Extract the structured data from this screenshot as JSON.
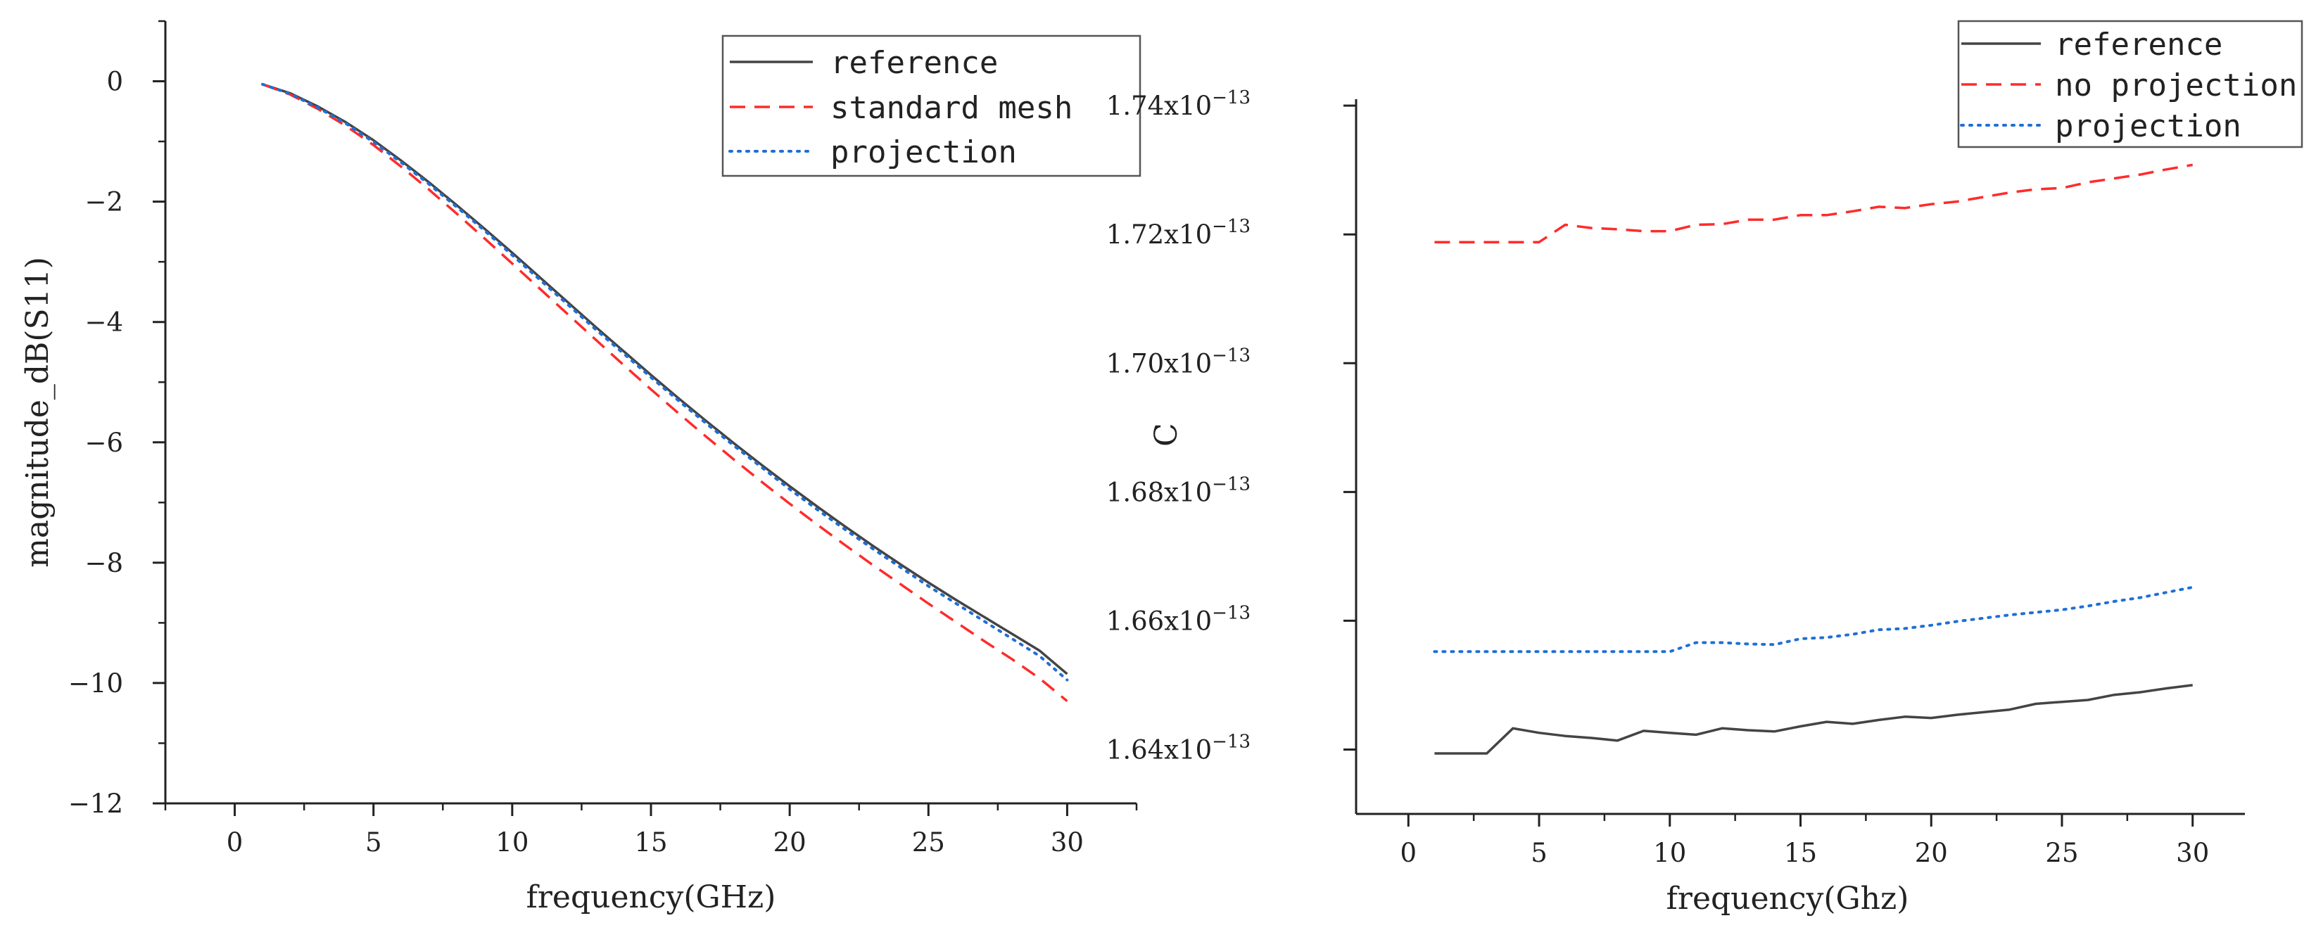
{
  "chart_data": [
    {
      "type": "line",
      "xlabel": "frequency(GHz)",
      "ylabel": "magnitude_dB(S11)",
      "xlim": [
        -2.5,
        32.5
      ],
      "ylim": [
        -12,
        1
      ],
      "xticks": [
        0,
        5,
        10,
        15,
        20,
        25,
        30
      ],
      "xtick_labels": [
        "0",
        "5",
        "10",
        "15",
        "20",
        "25",
        "30"
      ],
      "yticks": [
        0,
        -2,
        -4,
        -6,
        -8,
        -10,
        -12
      ],
      "ytick_labels": [
        "0",
        "−2",
        "−4",
        "−6",
        "−8",
        "−10",
        "−12"
      ],
      "legend_position": "top-right",
      "x": [
        1,
        2,
        3,
        4,
        5,
        6,
        7,
        8,
        9,
        10,
        11,
        12,
        13,
        14,
        15,
        16,
        17,
        18,
        19,
        20,
        21,
        22,
        23,
        24,
        25,
        26,
        27,
        28,
        29,
        30
      ],
      "series": [
        {
          "name": "reference",
          "color": "#444444",
          "dash": "solid",
          "values": [
            -0.05,
            -0.2,
            -0.42,
            -0.68,
            -0.98,
            -1.32,
            -1.68,
            -2.06,
            -2.45,
            -2.85,
            -3.26,
            -3.67,
            -4.08,
            -4.48,
            -4.88,
            -5.27,
            -5.65,
            -6.02,
            -6.38,
            -6.73,
            -7.07,
            -7.4,
            -7.72,
            -8.03,
            -8.33,
            -8.62,
            -8.9,
            -9.18,
            -9.46,
            -9.85
          ]
        },
        {
          "name": "standard mesh",
          "color": "#ff2b2b",
          "dash": "dashed",
          "values": [
            -0.05,
            -0.22,
            -0.46,
            -0.74,
            -1.06,
            -1.42,
            -1.8,
            -2.2,
            -2.61,
            -3.03,
            -3.45,
            -3.87,
            -4.29,
            -4.71,
            -5.12,
            -5.52,
            -5.91,
            -6.29,
            -6.66,
            -7.02,
            -7.37,
            -7.71,
            -8.04,
            -8.36,
            -8.68,
            -8.99,
            -9.3,
            -9.6,
            -9.92,
            -10.3
          ]
        },
        {
          "name": "projection",
          "color": "#1f6fd6",
          "dash": "dotted",
          "values": [
            -0.05,
            -0.21,
            -0.44,
            -0.7,
            -1.01,
            -1.35,
            -1.71,
            -2.09,
            -2.48,
            -2.89,
            -3.3,
            -3.71,
            -4.12,
            -4.52,
            -4.92,
            -5.31,
            -5.69,
            -6.06,
            -6.42,
            -6.78,
            -7.12,
            -7.45,
            -7.77,
            -8.08,
            -8.39,
            -8.68,
            -8.97,
            -9.26,
            -9.55,
            -9.95
          ]
        }
      ]
    },
    {
      "type": "line",
      "xlabel": "frequency(Ghz)",
      "ylabel": "C",
      "xlim": [
        -2,
        32
      ],
      "ylim": [
        1.63e-13,
        1.741e-13
      ],
      "xticks": [
        0,
        5,
        10,
        15,
        20,
        25,
        30
      ],
      "xtick_labels": [
        "0",
        "5",
        "10",
        "15",
        "20",
        "25",
        "30"
      ],
      "yticks": [
        1.64e-13,
        1.66e-13,
        1.68e-13,
        1.7e-13,
        1.72e-13,
        1.74e-13
      ],
      "ytick_labels": [
        {
          "mantissa": "1.64x10",
          "exponent": "−13"
        },
        {
          "mantissa": "1.66x10",
          "exponent": "−13"
        },
        {
          "mantissa": "1.68x10",
          "exponent": "−13"
        },
        {
          "mantissa": "1.70x10",
          "exponent": "−13"
        },
        {
          "mantissa": "1.72x10",
          "exponent": "−13"
        },
        {
          "mantissa": "1.74x10",
          "exponent": "−13"
        }
      ],
      "legend_position": "top-right",
      "x": [
        1,
        2,
        3,
        4,
        5,
        6,
        7,
        8,
        9,
        10,
        11,
        12,
        13,
        14,
        15,
        16,
        17,
        18,
        19,
        20,
        21,
        22,
        23,
        24,
        25,
        26,
        27,
        28,
        29,
        30
      ],
      "series": [
        {
          "name": "reference",
          "color": "#444444",
          "dash": "solid",
          "values": [
            1.6394e-13,
            1.6394e-13,
            1.6394e-13,
            1.6433e-13,
            1.6426e-13,
            1.6421e-13,
            1.6418e-13,
            1.6414e-13,
            1.6429e-13,
            1.6426e-13,
            1.6423e-13,
            1.6433e-13,
            1.643e-13,
            1.6428e-13,
            1.6436e-13,
            1.6443e-13,
            1.644e-13,
            1.6446e-13,
            1.6451e-13,
            1.6449e-13,
            1.6454e-13,
            1.6458e-13,
            1.6462e-13,
            1.6471e-13,
            1.6474e-13,
            1.6477e-13,
            1.6485e-13,
            1.6489e-13,
            1.6495e-13,
            1.65e-13
          ]
        },
        {
          "name": "no projection",
          "color": "#ff2b2b",
          "dash": "dashed",
          "values": [
            1.7188e-13,
            1.7188e-13,
            1.7188e-13,
            1.7188e-13,
            1.7188e-13,
            1.7215e-13,
            1.721e-13,
            1.7208e-13,
            1.7205e-13,
            1.7205e-13,
            1.7215e-13,
            1.7216e-13,
            1.7223e-13,
            1.7223e-13,
            1.723e-13,
            1.723e-13,
            1.7236e-13,
            1.7243e-13,
            1.7241e-13,
            1.7247e-13,
            1.7251e-13,
            1.7258e-13,
            1.7265e-13,
            1.727e-13,
            1.7272e-13,
            1.7281e-13,
            1.7287e-13,
            1.7293e-13,
            1.7301e-13,
            1.7308e-13
          ]
        },
        {
          "name": "projection",
          "color": "#1f6fd6",
          "dash": "dotted",
          "values": [
            1.6552e-13,
            1.6552e-13,
            1.6552e-13,
            1.6552e-13,
            1.6552e-13,
            1.6552e-13,
            1.6552e-13,
            1.6552e-13,
            1.6552e-13,
            1.6552e-13,
            1.6566e-13,
            1.6566e-13,
            1.6564e-13,
            1.6563e-13,
            1.6572e-13,
            1.6574e-13,
            1.6579e-13,
            1.6586e-13,
            1.6588e-13,
            1.6593e-13,
            1.6599e-13,
            1.6604e-13,
            1.6609e-13,
            1.6613e-13,
            1.6617e-13,
            1.6623e-13,
            1.663e-13,
            1.6636e-13,
            1.6644e-13,
            1.6652e-13
          ]
        }
      ]
    }
  ]
}
